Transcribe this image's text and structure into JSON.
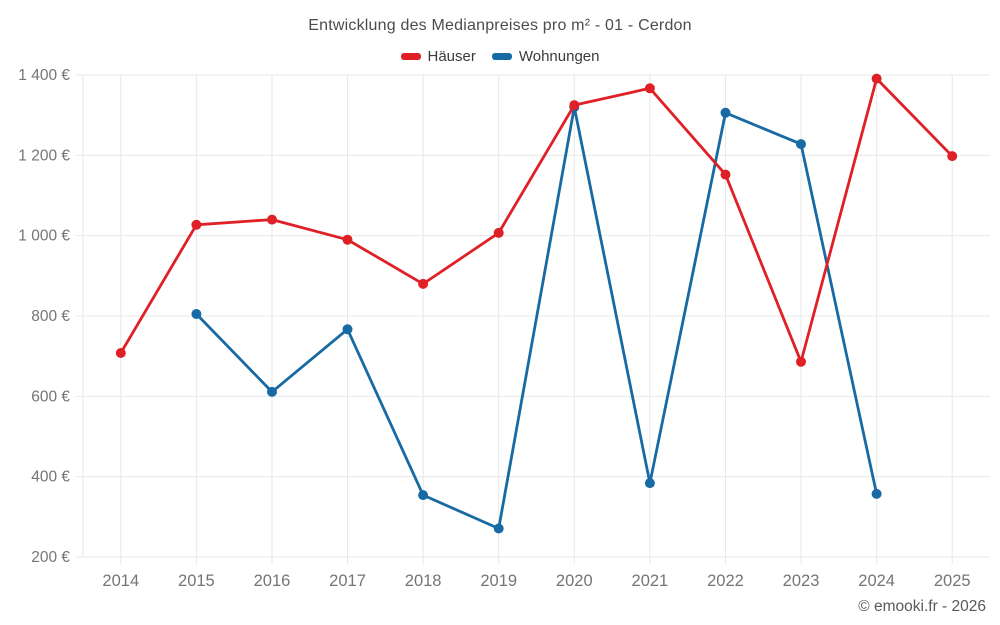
{
  "page": {
    "background": "#ffffff"
  },
  "header": {
    "title": "Entwicklung des Medianpreises pro m² - 01 - Cerdon"
  },
  "legend": {
    "items": [
      {
        "label": "Häuser",
        "color": "#e02027"
      },
      {
        "label": "Wohnungen",
        "color": "#176aa3"
      }
    ]
  },
  "chart_data": {
    "type": "line",
    "title": "Entwicklung des Medianpreises pro m² - 01 - Cerdon",
    "categories": [
      "2014",
      "2015",
      "2016",
      "2017",
      "2018",
      "2019",
      "2020",
      "2021",
      "2022",
      "2023",
      "2024",
      "2025"
    ],
    "series": [
      {
        "name": "Häuser",
        "color": "#e02027",
        "values": [
          708,
          1027,
          1040,
          990,
          880,
          1007,
          1325,
          1367,
          1152,
          686,
          1391,
          1198
        ]
      },
      {
        "name": "Wohnungen",
        "color": "#176aa3",
        "values": [
          null,
          805,
          611,
          767,
          354,
          271,
          1320,
          384,
          1306,
          1228,
          357,
          null
        ]
      }
    ],
    "xlabel": "",
    "ylabel": "",
    "y_axis": {
      "min": 200,
      "max": 1400,
      "step": 200,
      "unit": "€",
      "tick_labels": [
        "200 €",
        "400 €",
        "600 €",
        "800 €",
        "1 000 €",
        "1 200 €",
        "1 400 €"
      ]
    },
    "grid": true,
    "legend_position": "top-center",
    "marker_radius": 5,
    "line_width": 2.8
  },
  "footer": {
    "text": "© emooki.fr - 2026"
  },
  "colors": {
    "grid": "#e8e8e8",
    "axis_text": "#757575",
    "title_text": "#4c4c4c",
    "legend_text": "#3a3a3a",
    "footer_text": "#595959"
  }
}
